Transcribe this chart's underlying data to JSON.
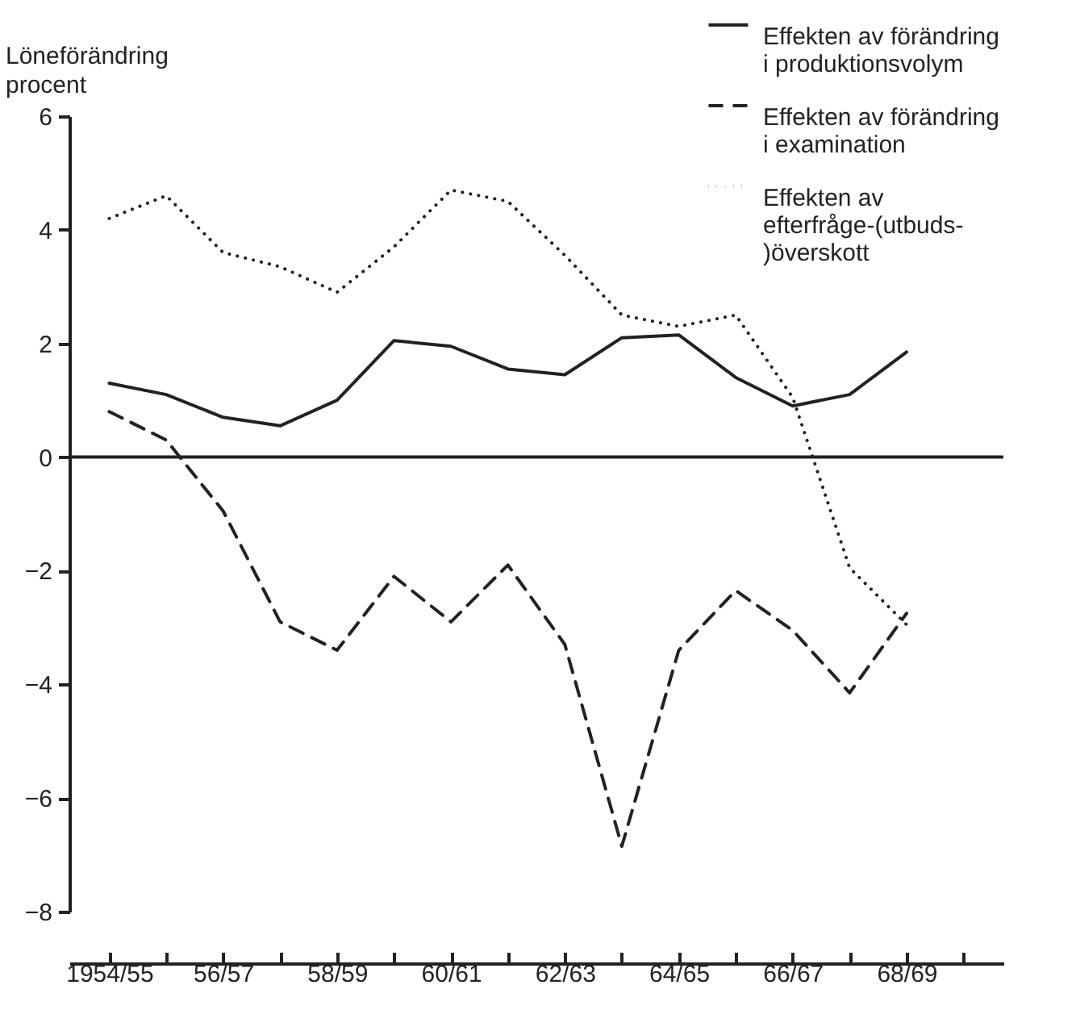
{
  "chart_data": {
    "type": "line",
    "ylabel": "Löneförändring procent",
    "categories": [
      "1954/55",
      null,
      "56/57",
      null,
      "58/59",
      null,
      "60/61",
      null,
      "62/63",
      null,
      "64/65",
      null,
      "66/67",
      null,
      "68/69",
      null
    ],
    "series": [
      {
        "name": "Effekten av förändring i produktionsvolym",
        "color": "#222222",
        "line_style": "solid",
        "values": [
          1.3,
          1.1,
          0.7,
          0.55,
          1.0,
          2.05,
          1.95,
          1.55,
          1.45,
          2.1,
          2.15,
          1.4,
          0.9,
          1.1,
          1.85,
          null
        ]
      },
      {
        "name": "Effekten av förändring i examination",
        "color": "#222222",
        "line_style": "dashed",
        "values": [
          0.8,
          0.3,
          -0.95,
          -2.9,
          -3.4,
          -2.1,
          -2.9,
          -1.9,
          -3.3,
          -6.85,
          -3.4,
          -2.35,
          -3.05,
          -4.15,
          -2.75,
          null
        ]
      },
      {
        "name": "Effekten av efterfråge-(utbuds-)överskott",
        "color": "#222222",
        "line_style": "dotted",
        "values": [
          4.2,
          4.6,
          3.6,
          3.35,
          2.9,
          3.7,
          4.7,
          4.5,
          3.55,
          2.5,
          2.3,
          2.5,
          1.05,
          -1.95,
          -2.95,
          null
        ]
      }
    ],
    "ylim": [
      -8,
      6
    ],
    "yticks": [
      -8,
      -6,
      -4,
      -2,
      0,
      2,
      4,
      6
    ],
    "ref_lines": [
      {
        "axis": "y",
        "value": 0
      }
    ],
    "legend": "top right",
    "grid": false,
    "marker": "none"
  }
}
